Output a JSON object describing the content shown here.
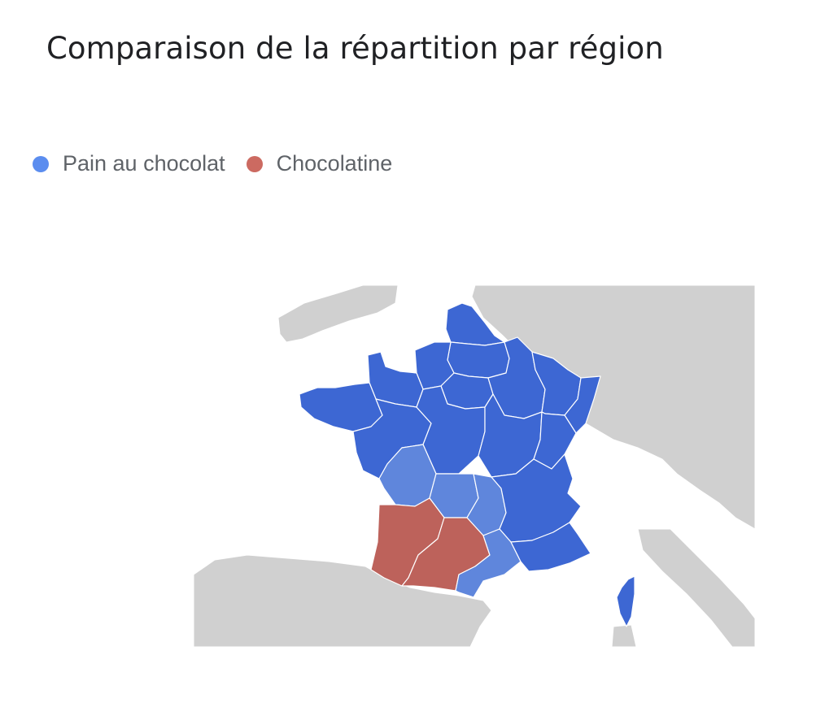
{
  "title": "Comparaison de la répartition par région",
  "legend": [
    {
      "label": "Pain au chocolat",
      "color": "#5b8def"
    },
    {
      "label": "Chocolatine",
      "color": "#cc6a61"
    }
  ],
  "colors": {
    "pain_au_chocolat_strong": "#3d67d3",
    "pain_au_chocolat_light": "#5f86dc",
    "chocolatine": "#bd625b",
    "other_land": "#d0d0d0",
    "sea": "#ffffff"
  },
  "map": {
    "regions": [
      {
        "name": "Nord-Pas-de-Calais",
        "value": "Pain au chocolat",
        "shade": "strong"
      },
      {
        "name": "Picardie",
        "value": "Pain au chocolat",
        "shade": "strong"
      },
      {
        "name": "Haute-Normandie",
        "value": "Pain au chocolat",
        "shade": "strong"
      },
      {
        "name": "Basse-Normandie",
        "value": "Pain au chocolat",
        "shade": "strong"
      },
      {
        "name": "Bretagne",
        "value": "Pain au chocolat",
        "shade": "strong"
      },
      {
        "name": "Pays de la Loire",
        "value": "Pain au chocolat",
        "shade": "strong"
      },
      {
        "name": "Centre",
        "value": "Pain au chocolat",
        "shade": "strong"
      },
      {
        "name": "Île-de-France",
        "value": "Pain au chocolat",
        "shade": "strong"
      },
      {
        "name": "Champagne-Ardenne",
        "value": "Pain au chocolat",
        "shade": "strong"
      },
      {
        "name": "Lorraine",
        "value": "Pain au chocolat",
        "shade": "strong"
      },
      {
        "name": "Alsace",
        "value": "Pain au chocolat",
        "shade": "strong"
      },
      {
        "name": "Bourgogne",
        "value": "Pain au chocolat",
        "shade": "strong"
      },
      {
        "name": "Franche-Comté",
        "value": "Pain au chocolat",
        "shade": "strong"
      },
      {
        "name": "Poitou-Charentes",
        "value": "Pain au chocolat",
        "shade": "light"
      },
      {
        "name": "Limousin",
        "value": "Pain au chocolat",
        "shade": "light"
      },
      {
        "name": "Auvergne",
        "value": "Pain au chocolat",
        "shade": "light"
      },
      {
        "name": "Rhône-Alpes",
        "value": "Pain au chocolat",
        "shade": "strong"
      },
      {
        "name": "Languedoc-Roussillon",
        "value": "Pain au chocolat",
        "shade": "light"
      },
      {
        "name": "Provence-Alpes-Côte d'Azur",
        "value": "Pain au chocolat",
        "shade": "strong"
      },
      {
        "name": "Corse",
        "value": "Pain au chocolat",
        "shade": "strong"
      },
      {
        "name": "Aquitaine",
        "value": "Chocolatine",
        "shade": "strong"
      },
      {
        "name": "Midi-Pyrénées",
        "value": "Chocolatine",
        "shade": "strong"
      }
    ]
  }
}
